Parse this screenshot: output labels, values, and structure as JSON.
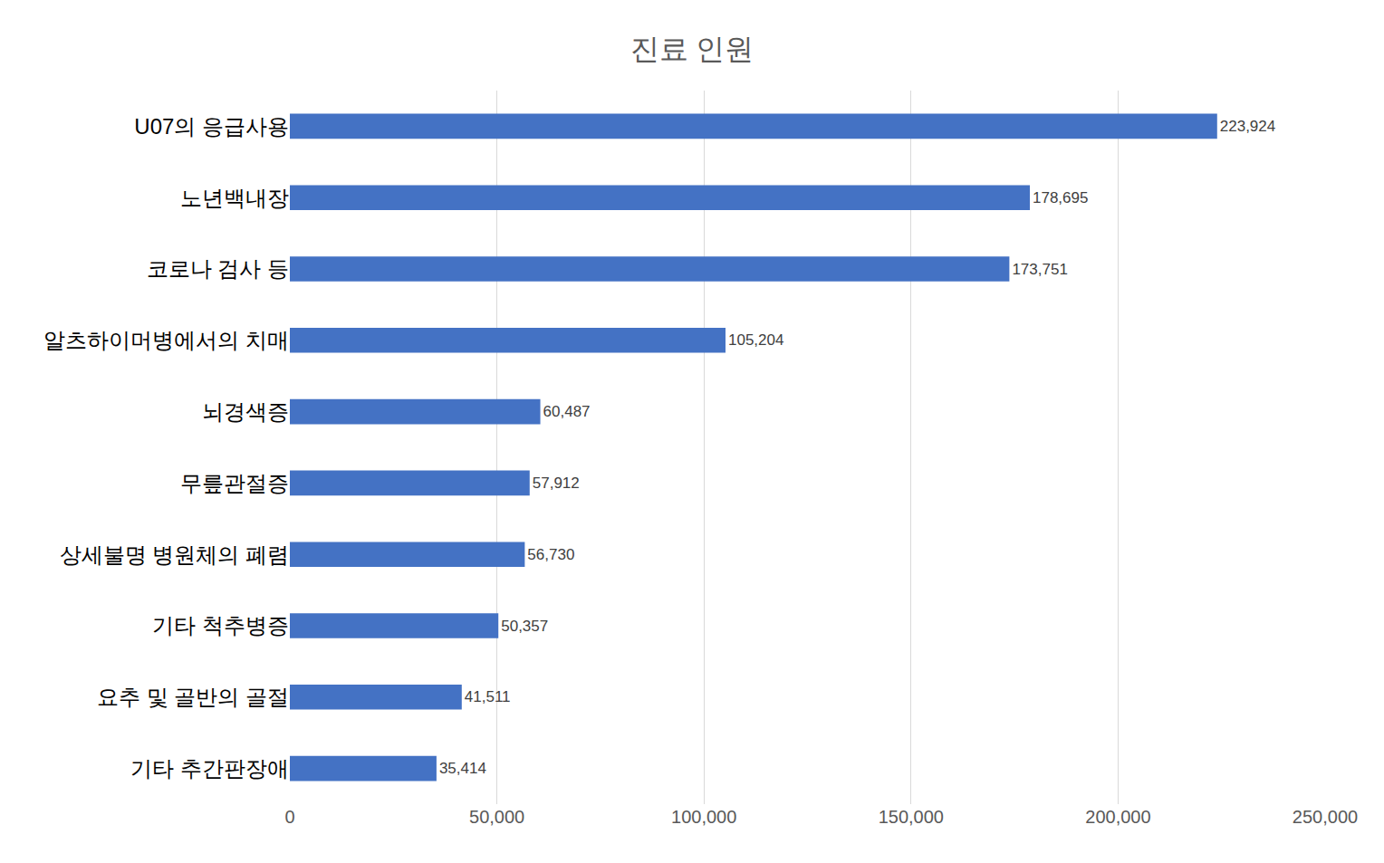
{
  "chart_data": {
    "type": "bar",
    "title": "진료 인원",
    "orientation": "horizontal",
    "categories": [
      "U07의 응급사용",
      "노년백내장",
      "코로나 검사 등",
      "알츠하이머병에서의 치매",
      "뇌경색증",
      "무릎관절증",
      "상세불명 병원체의 폐렴",
      "기타 척추병증",
      "요추 및 골반의 골절",
      "기타 추간판장애"
    ],
    "values": [
      223924,
      178695,
      173751,
      105204,
      60487,
      57912,
      56730,
      50357,
      41511,
      35414
    ],
    "value_labels": [
      "223,924",
      "178,695",
      "173,751",
      "105,204",
      "60,487",
      "57,912",
      "56,730",
      "50,357",
      "41,511",
      "35,414"
    ],
    "data_labels": true,
    "color": "#4472c4",
    "xlim": [
      0,
      250000
    ],
    "xticks": [
      0,
      {
        "value": 50000,
        "label": "50,000"
      },
      {
        "value": 100000,
        "label": "100,000"
      },
      {
        "value": 150000,
        "label": "150,000"
      },
      {
        "value": 200000,
        "label": "200,000"
      },
      {
        "value": 250000,
        "label": "250,000"
      }
    ],
    "grid": true
  }
}
